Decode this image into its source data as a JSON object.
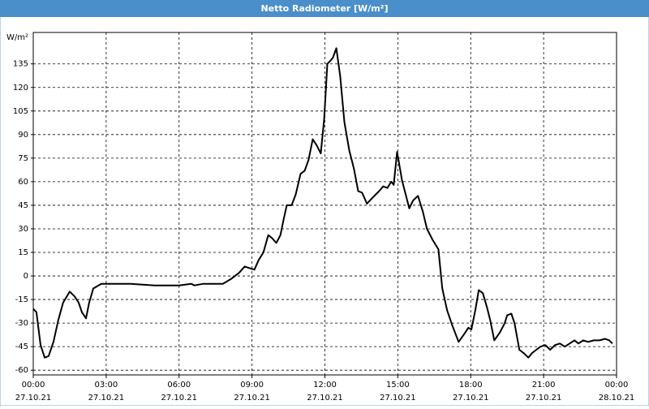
{
  "window_title": "Netto Radiometer [W/m²]",
  "chart_data": {
    "type": "line",
    "y_unit": "W/m²",
    "color": "#000000",
    "grid": true,
    "x": [
      0,
      0.13,
      0.3,
      0.47,
      0.63,
      0.83,
      1.03,
      1.23,
      1.5,
      1.7,
      1.87,
      2.0,
      2.17,
      2.3,
      2.47,
      2.8,
      3.3,
      4.0,
      5.0,
      5.3,
      6.0,
      6.5,
      6.63,
      7.0,
      7.8,
      8.13,
      8.47,
      8.7,
      8.9,
      9.1,
      9.27,
      9.47,
      9.67,
      9.83,
      10.0,
      10.17,
      10.3,
      10.43,
      10.63,
      10.8,
      11.0,
      11.17,
      11.33,
      11.5,
      11.67,
      11.83,
      11.97,
      12.1,
      12.23,
      12.33,
      12.47,
      12.63,
      12.8,
      13.0,
      13.2,
      13.37,
      13.53,
      13.73,
      13.97,
      14.23,
      14.4,
      14.57,
      14.73,
      14.83,
      14.97,
      15.17,
      15.47,
      15.63,
      15.83,
      16.03,
      16.2,
      16.43,
      16.67,
      16.83,
      17.03,
      17.23,
      17.5,
      17.73,
      17.9,
      18.03,
      18.2,
      18.33,
      18.5,
      18.67,
      18.8,
      18.97,
      19.2,
      19.4,
      19.5,
      19.67,
      19.8,
      20.0,
      20.17,
      20.37,
      20.53,
      20.7,
      20.87,
      21.07,
      21.27,
      21.47,
      21.67,
      21.87,
      22.07,
      22.27,
      22.43,
      22.63,
      22.83,
      23.07,
      23.3,
      23.53,
      23.7,
      23.83
    ],
    "values": [
      -21,
      -23,
      -44,
      -52,
      -51,
      -42,
      -28,
      -17,
      -10,
      -13,
      -17,
      -23,
      -27,
      -17,
      -8,
      -5,
      -5,
      -5,
      -6,
      -6,
      -6,
      -5,
      -6,
      -5,
      -5,
      -2,
      2,
      6,
      5,
      4,
      10,
      15,
      26,
      24,
      21,
      26,
      36,
      45,
      45,
      52,
      65,
      67,
      74,
      87,
      83,
      78,
      100,
      135,
      137,
      139,
      145,
      127,
      98,
      80,
      68,
      54,
      53,
      46,
      50,
      54,
      57,
      56,
      60,
      58,
      79,
      61,
      43,
      48,
      51,
      41,
      30,
      23,
      17,
      -8,
      -22,
      -31,
      -42,
      -37,
      -33,
      -34,
      -21,
      -9,
      -11,
      -20,
      -28,
      -41,
      -36,
      -30,
      -25,
      -24,
      -30,
      -47,
      -49,
      -52,
      -49,
      -47,
      -45,
      -44,
      -47,
      -44,
      -43,
      -45,
      -43,
      -41,
      -43,
      -41,
      -42,
      -41,
      -41,
      -40,
      -41,
      -43
    ],
    "xlim": [
      0,
      24
    ],
    "xticks": [
      {
        "value": 0,
        "label": "00:00",
        "date": "27.10.21"
      },
      {
        "value": 3,
        "label": "03:00",
        "date": "27.10.21"
      },
      {
        "value": 6,
        "label": "06:00",
        "date": "27.10.21"
      },
      {
        "value": 9,
        "label": "09:00",
        "date": "27.10.21"
      },
      {
        "value": 12,
        "label": "12:00",
        "date": "27.10.21"
      },
      {
        "value": 15,
        "label": "15:00",
        "date": "27.10.21"
      },
      {
        "value": 18,
        "label": "18:00",
        "date": "27.10.21"
      },
      {
        "value": 21,
        "label": "21:00",
        "date": "27.10.21"
      },
      {
        "value": 24,
        "label": "00:00",
        "date": "28.10.21"
      }
    ],
    "ylim": [
      -63,
      155
    ],
    "yticks": [
      -60,
      -45,
      -30,
      -15,
      0,
      15,
      30,
      45,
      60,
      75,
      90,
      105,
      120,
      135
    ]
  }
}
